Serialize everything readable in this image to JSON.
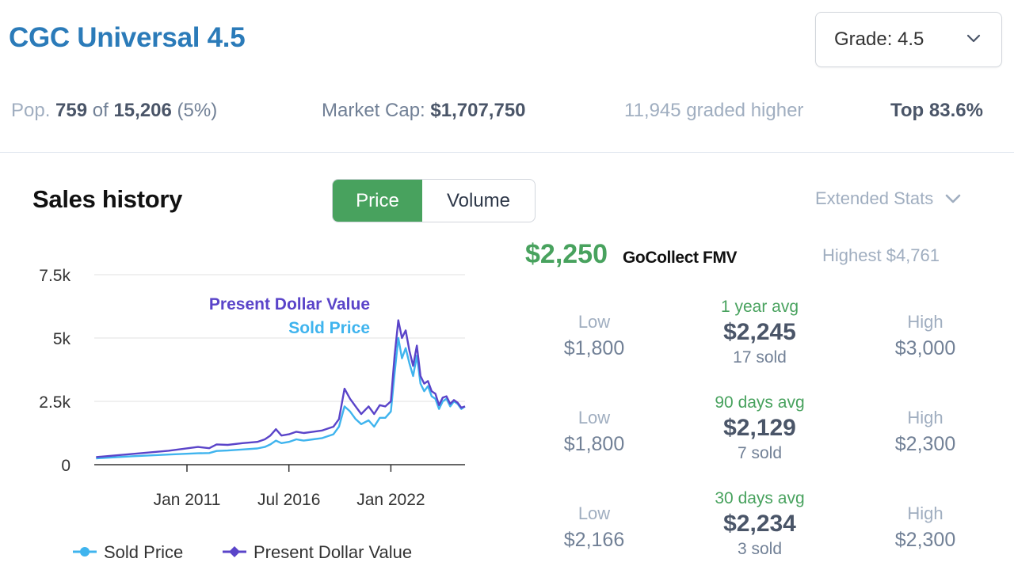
{
  "header": {
    "title": "CGC Universal 4.5",
    "grade_select_label": "Grade: 4.5"
  },
  "stats": {
    "pop_prefix": "Pop.",
    "pop_count": "759",
    "pop_of": "of",
    "pop_total": "15,206",
    "pop_pct": "(5%)",
    "market_cap_label": "Market Cap:",
    "market_cap_value": "$1,707,750",
    "graded_higher": "11,945 graded higher",
    "top_pct": "Top 83.6%"
  },
  "sales": {
    "title": "Sales history",
    "toggle": {
      "price": "Price",
      "volume": "Volume",
      "active": "price"
    },
    "extended_stats": "Extended Stats"
  },
  "fmv": {
    "price": "$2,250",
    "label": "GoCollect FMV",
    "highest": "Highest $4,761"
  },
  "periods": [
    {
      "low_label": "Low",
      "low": "$1,800",
      "avg_label": "1 year avg",
      "avg": "$2,245",
      "sold": "17 sold",
      "high_label": "High",
      "high": "$3,000"
    },
    {
      "low_label": "Low",
      "low": "$1,800",
      "avg_label": "90 days avg",
      "avg": "$2,129",
      "sold": "7 sold",
      "high_label": "High",
      "high": "$2,300"
    },
    {
      "low_label": "Low",
      "low": "$2,166",
      "avg_label": "30 days avg",
      "avg": "$2,234",
      "sold": "3 sold",
      "high_label": "High",
      "high": "$2,300"
    }
  ],
  "colors": {
    "title": "#2b7bb9",
    "accent_green": "#48a25e",
    "sold_price": "#3fb4ee",
    "present_value": "#5a44c9"
  },
  "chart_data": {
    "type": "line",
    "ylim": [
      0,
      7500
    ],
    "yticks": [
      0,
      2500,
      5000,
      7500
    ],
    "ytick_labels": [
      "0",
      "2.5k",
      "5k",
      "7.5k"
    ],
    "xlim": [
      2006.0,
      2026.0
    ],
    "xticks": [
      2011.0,
      2016.5,
      2022.0
    ],
    "xtick_labels": [
      "Jan 2011",
      "Jul 2016",
      "Jan 2022"
    ],
    "grid": true,
    "legend_position": "bottom",
    "annotations": [
      "Present Dollar Value",
      "Sold Price"
    ],
    "series": [
      {
        "name": "Sold Price",
        "color": "#3fb4ee",
        "points": [
          [
            2006.1,
            250
          ],
          [
            2008.0,
            330
          ],
          [
            2010.0,
            400
          ],
          [
            2011.6,
            450
          ],
          [
            2012.2,
            460
          ],
          [
            2012.6,
            540
          ],
          [
            2013.2,
            560
          ],
          [
            2014.0,
            600
          ],
          [
            2014.8,
            640
          ],
          [
            2015.2,
            700
          ],
          [
            2015.5,
            800
          ],
          [
            2015.8,
            950
          ],
          [
            2016.1,
            850
          ],
          [
            2016.5,
            900
          ],
          [
            2016.9,
            1000
          ],
          [
            2017.3,
            950
          ],
          [
            2017.8,
            1000
          ],
          [
            2018.3,
            1050
          ],
          [
            2018.9,
            1200
          ],
          [
            2019.2,
            1500
          ],
          [
            2019.5,
            2300
          ],
          [
            2019.8,
            2100
          ],
          [
            2020.1,
            1800
          ],
          [
            2020.4,
            1600
          ],
          [
            2020.8,
            1750
          ],
          [
            2021.1,
            1500
          ],
          [
            2021.4,
            1850
          ],
          [
            2021.7,
            1850
          ],
          [
            2022.0,
            2100
          ],
          [
            2022.2,
            3600
          ],
          [
            2022.4,
            5000
          ],
          [
            2022.6,
            4200
          ],
          [
            2022.8,
            4600
          ],
          [
            2023.0,
            4000
          ],
          [
            2023.2,
            3500
          ],
          [
            2023.4,
            4300
          ],
          [
            2023.6,
            3200
          ],
          [
            2023.8,
            2900
          ],
          [
            2024.0,
            3100
          ],
          [
            2024.2,
            2700
          ],
          [
            2024.4,
            2600
          ],
          [
            2024.6,
            2200
          ],
          [
            2024.8,
            2500
          ],
          [
            2025.0,
            2600
          ],
          [
            2025.2,
            2300
          ],
          [
            2025.4,
            2500
          ],
          [
            2025.6,
            2400
          ],
          [
            2025.8,
            2200
          ],
          [
            2026.0,
            2300
          ]
        ]
      },
      {
        "name": "Present Dollar Value",
        "color": "#5a44c9",
        "points": [
          [
            2006.1,
            300
          ],
          [
            2008.0,
            420
          ],
          [
            2010.0,
            550
          ],
          [
            2011.6,
            700
          ],
          [
            2012.2,
            650
          ],
          [
            2012.6,
            800
          ],
          [
            2013.2,
            780
          ],
          [
            2014.0,
            850
          ],
          [
            2014.8,
            900
          ],
          [
            2015.2,
            1000
          ],
          [
            2015.5,
            1150
          ],
          [
            2015.8,
            1400
          ],
          [
            2016.1,
            1150
          ],
          [
            2016.5,
            1200
          ],
          [
            2016.9,
            1300
          ],
          [
            2017.3,
            1250
          ],
          [
            2017.8,
            1300
          ],
          [
            2018.3,
            1350
          ],
          [
            2018.9,
            1500
          ],
          [
            2019.2,
            1800
          ],
          [
            2019.5,
            3000
          ],
          [
            2019.8,
            2600
          ],
          [
            2020.1,
            2300
          ],
          [
            2020.4,
            2000
          ],
          [
            2020.8,
            2300
          ],
          [
            2021.1,
            2000
          ],
          [
            2021.4,
            2350
          ],
          [
            2021.7,
            2300
          ],
          [
            2022.0,
            2500
          ],
          [
            2022.2,
            4300
          ],
          [
            2022.4,
            5700
          ],
          [
            2022.6,
            5000
          ],
          [
            2022.8,
            5300
          ],
          [
            2023.0,
            4500
          ],
          [
            2023.2,
            3900
          ],
          [
            2023.4,
            4700
          ],
          [
            2023.6,
            3500
          ],
          [
            2023.8,
            3200
          ],
          [
            2024.0,
            3300
          ],
          [
            2024.2,
            2900
          ],
          [
            2024.4,
            2800
          ],
          [
            2024.6,
            2350
          ],
          [
            2024.8,
            2650
          ],
          [
            2025.0,
            2700
          ],
          [
            2025.2,
            2400
          ],
          [
            2025.4,
            2550
          ],
          [
            2025.6,
            2450
          ],
          [
            2025.8,
            2250
          ],
          [
            2026.0,
            2300
          ]
        ]
      }
    ]
  }
}
